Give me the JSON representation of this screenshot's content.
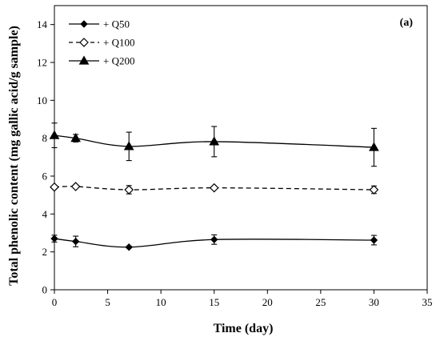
{
  "chart_data": {
    "type": "line",
    "panel_label": "(a)",
    "xlabel": "Time (day)",
    "ylabel": "Total  phenolic content (mg gallic acid/g sample)",
    "xlim": [
      0,
      35
    ],
    "ylim": [
      0,
      15
    ],
    "xticks": [
      0,
      5,
      10,
      15,
      20,
      25,
      30,
      35
    ],
    "yticks": [
      0,
      2,
      4,
      6,
      8,
      10,
      12,
      14
    ],
    "grid": false,
    "legend_position": "top-left",
    "x": [
      0,
      2,
      7,
      15,
      30
    ],
    "series": [
      {
        "name": "+ Q50",
        "values": [
          2.7,
          2.55,
          2.25,
          2.65,
          2.62
        ],
        "errors": [
          0.18,
          0.28,
          0.05,
          0.25,
          0.25
        ],
        "marker": "filled-diamond",
        "line": "solid",
        "color": "#000000"
      },
      {
        "name": "+ Q100",
        "values": [
          5.42,
          5.45,
          5.28,
          5.38,
          5.28
        ],
        "errors": [
          0.05,
          0.05,
          0.22,
          0.05,
          0.2
        ],
        "marker": "open-diamond",
        "line": "dashed",
        "color": "#000000"
      },
      {
        "name": "+ Q200",
        "values": [
          8.15,
          8.0,
          7.57,
          7.82,
          7.52
        ],
        "errors": [
          0.65,
          0.2,
          0.75,
          0.8,
          1.0
        ],
        "marker": "filled-triangle",
        "line": "solid",
        "color": "#000000"
      }
    ]
  }
}
